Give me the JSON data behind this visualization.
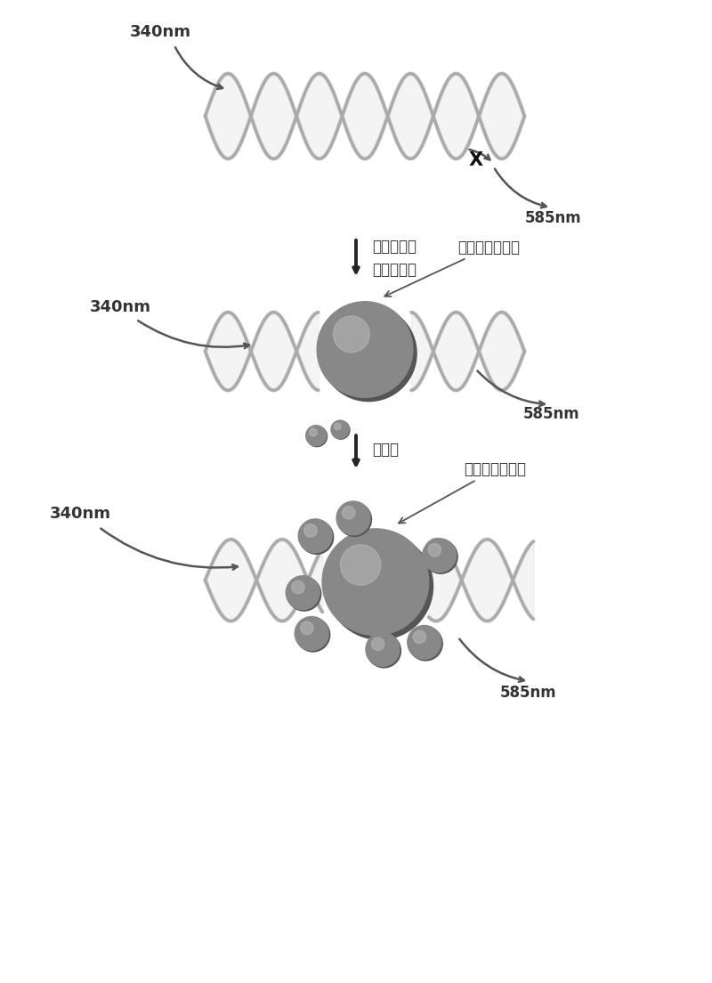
{
  "bg_color": "#ffffff",
  "dna_color": "#aaaaaa",
  "dna_shadow_color": "#cccccc",
  "nanoparticle_color": "#888888",
  "nanoparticle_highlight": "#bbbbbb",
  "nanoparticle_shadow": "#555555",
  "arrow_color": "#555555",
  "text_color": "#333333",
  "cross_color": "#111111",
  "label_340nm_1": "340nm",
  "label_340nm_2": "340nm",
  "label_340nm_3": "340nm",
  "label_585nm_1": "585nm",
  "label_585nm_2": "585nm",
  "label_585nm_3": "585nm",
  "label_step1": "二价铜离子",
  "label_step1b": "抗坏血酸钓",
  "label_step2": "钓离子",
  "label_nanoparticle1": "荧光铜纳米颏粒",
  "label_nanoparticle2": "荧光铜纳米颏粒",
  "figsize": [
    8.0,
    11.04
  ],
  "dpi": 100
}
